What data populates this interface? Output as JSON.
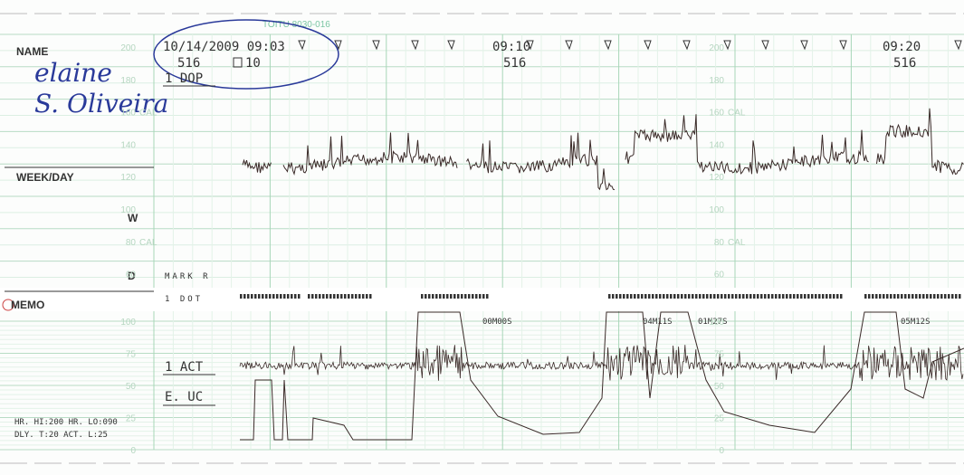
{
  "header": {
    "printer": "TOITU 8030-016",
    "name_label": "NAME",
    "handwriting": [
      "elaine",
      "S. Oliveira"
    ],
    "start": "10/14/2009 09:03",
    "start_code": "516",
    "start_box": "10",
    "mode": "1 DOP",
    "marks": [
      {
        "time": "09:10",
        "code": "516"
      },
      {
        "time": "09:20",
        "code": "516"
      }
    ]
  },
  "left": {
    "week_day": "WEEK/DAY",
    "w": "W",
    "d": "D",
    "memo": "MEMO",
    "settings": [
      "HR. HI:200 HR. LO:090",
      "DLY. T:20 ACT. L:25"
    ]
  },
  "upper": {
    "scale": [
      "200",
      "180",
      "160",
      "140",
      "120",
      "100",
      "80",
      "60"
    ],
    "cal": "CAL",
    "mark": "MARK R"
  },
  "lower": {
    "dot": "1 DOT",
    "act": "1 ACT",
    "uc": "E. UC",
    "scale": [
      "100",
      "75",
      "50",
      "25",
      "0"
    ],
    "timers": [
      "00M00S",
      "04M11S",
      "01M27S",
      "05M12S"
    ]
  }
}
